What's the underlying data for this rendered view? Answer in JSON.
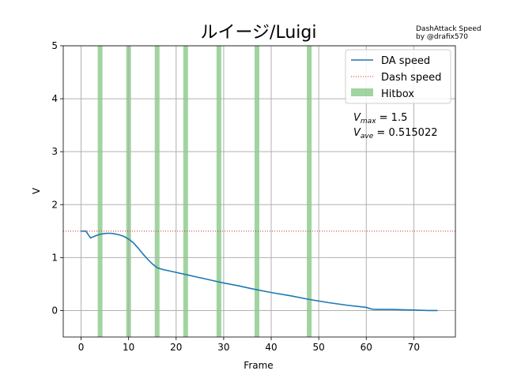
{
  "credit": {
    "line1": "DashAttack Speed",
    "line2": "by @drafix570"
  },
  "chart_data": {
    "type": "line",
    "title": "ルイージ/Luigi",
    "xlabel": "Frame",
    "ylabel": "V",
    "xlim": [
      -3.75,
      78.75
    ],
    "ylim": [
      -0.5,
      5
    ],
    "xticks": [
      0,
      10,
      20,
      30,
      40,
      50,
      60,
      70
    ],
    "yticks": [
      0,
      1,
      2,
      3,
      4,
      5
    ],
    "grid": true,
    "legend_position": "upper right",
    "series": [
      {
        "name": "DA speed",
        "kind": "line",
        "color": "#1f77b4",
        "x": [
          0,
          1,
          2,
          3,
          4,
          5,
          6,
          7,
          8,
          9,
          10,
          11,
          12,
          13,
          14,
          15,
          16,
          17,
          18,
          20,
          22,
          25,
          28,
          30,
          33,
          36,
          40,
          44,
          48,
          52,
          56,
          60,
          61,
          62,
          65,
          70,
          73,
          75
        ],
        "y": [
          1.5,
          1.5,
          1.37,
          1.41,
          1.44,
          1.455,
          1.46,
          1.45,
          1.43,
          1.4,
          1.35,
          1.28,
          1.18,
          1.07,
          0.97,
          0.88,
          0.81,
          0.78,
          0.76,
          0.72,
          0.68,
          0.62,
          0.56,
          0.52,
          0.47,
          0.41,
          0.34,
          0.28,
          0.21,
          0.15,
          0.1,
          0.06,
          0.03,
          0.02,
          0.02,
          0.01,
          0.0,
          0.0
        ]
      },
      {
        "name": "Dash speed",
        "kind": "hline",
        "color": "#d62728",
        "value": 1.5
      },
      {
        "name": "Hitbox",
        "kind": "vspan",
        "color": "#2ca02c",
        "frames": [
          4,
          10,
          16,
          22,
          29,
          37,
          48
        ]
      }
    ],
    "annotations": {
      "vmax_label": "V",
      "vmax_sub": "max",
      "vmax_value": " = 1.5",
      "vave_label": "V",
      "vave_sub": "ave",
      "vave_value": " = 0.515022"
    }
  }
}
